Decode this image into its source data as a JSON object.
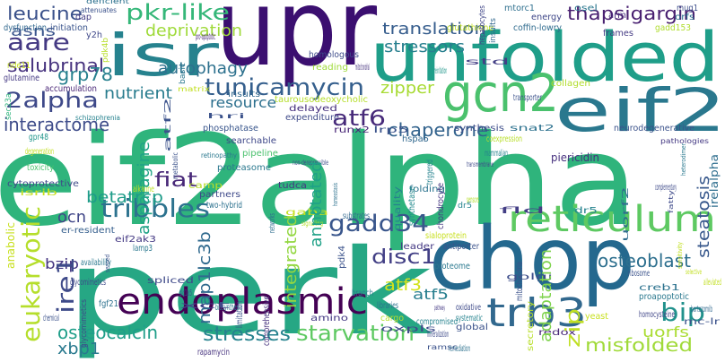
{
  "words": [
    {
      "text": "eif2alpha",
      "color": "#2fb47c"
    },
    {
      "text": "perk",
      "color": "#26a784"
    },
    {
      "text": "upr",
      "color": "#3b0f70"
    },
    {
      "text": "chop",
      "color": "#24688e"
    },
    {
      "text": "unfolded",
      "color": "#1f9e89"
    },
    {
      "text": "eif2",
      "color": "#2a788e"
    },
    {
      "text": "isr",
      "color": "#26828e"
    },
    {
      "text": "gcn2",
      "color": "#4ac16d"
    },
    {
      "text": "endoplasmic",
      "color": "#440154"
    },
    {
      "text": "reticulum",
      "color": "#5ec962"
    },
    {
      "text": "trb3",
      "color": "#31688e"
    },
    {
      "text": "tribbles",
      "color": "#2c728e"
    },
    {
      "text": "tunicamycin",
      "color": "#355f8d"
    },
    {
      "text": "pkr-like",
      "color": "#35b779"
    },
    {
      "text": "aare",
      "color": "#443983"
    },
    {
      "text": "gadd34",
      "color": "#39568c"
    },
    {
      "text": "2alpha",
      "color": "#3e4989"
    },
    {
      "text": "atf6",
      "color": "#472a7a"
    },
    {
      "text": "eukaryotic",
      "color": "#b5de2b"
    },
    {
      "text": "bip",
      "color": "#21918c"
    },
    {
      "text": "ire1",
      "color": "#3e4a89"
    },
    {
      "text": "fiat",
      "color": "#482878"
    },
    {
      "text": "starvation",
      "color": "#5ec962"
    },
    {
      "text": "stresses",
      "color": "#26828e"
    },
    {
      "text": "osteocalcin",
      "color": "#1f9e89"
    },
    {
      "text": "misfolded",
      "color": "#a0da39"
    },
    {
      "text": "thapsigargin",
      "color": "#481f70"
    },
    {
      "text": "leucine",
      "color": "#3b528b"
    },
    {
      "text": "salubrinal",
      "color": "#46327e"
    },
    {
      "text": "grp78",
      "color": "#27808e"
    },
    {
      "text": "interactome",
      "color": "#3e4c8a"
    },
    {
      "text": "chaperone",
      "color": "#33638d"
    },
    {
      "text": "deprivation",
      "color": "#9fda3a"
    },
    {
      "text": "autophagy",
      "color": "#2d718e"
    },
    {
      "text": "nutrient",
      "color": "#287c8e"
    },
    {
      "text": "zipper",
      "color": "#a8db34"
    },
    {
      "text": "translation",
      "color": "#365d8d"
    },
    {
      "text": "stressors",
      "color": "#277f8e"
    },
    {
      "text": "asns",
      "color": "#3a548c"
    },
    {
      "text": "resource",
      "color": "#2d708e"
    },
    {
      "text": "annotated",
      "color": "#1fa187"
    },
    {
      "text": "integrated",
      "color": "#93d741"
    },
    {
      "text": "betatrcp",
      "color": "#1e9c89"
    },
    {
      "text": "asparagine",
      "color": "#20a386"
    },
    {
      "text": "ocn",
      "color": "#404688"
    },
    {
      "text": "bzip",
      "color": "#453581"
    },
    {
      "text": "map1lc3b",
      "color": "#306a8e"
    },
    {
      "text": "disc1",
      "color": "#423f85"
    },
    {
      "text": "atf5",
      "color": "#277e8e"
    },
    {
      "text": "atf3",
      "color": "#d2e21b"
    },
    {
      "text": "osteoblast",
      "color": "#2d6f8e"
    },
    {
      "text": "steatosis",
      "color": "#38588c"
    },
    {
      "text": "adaptation",
      "color": "#7fd34e"
    },
    {
      "text": "zip",
      "color": "#c0df25"
    },
    {
      "text": "uorfs",
      "color": "#aadc32"
    },
    {
      "text": "xbp1",
      "color": "#29798e"
    },
    {
      "text": "cytoprotective",
      "color": "#3e4a89"
    },
    {
      "text": "anabolic",
      "color": "#c8e020"
    },
    {
      "text": "er-resident",
      "color": "#355f8d"
    },
    {
      "text": "proteasome",
      "color": "#2a788e"
    },
    {
      "text": "phosphatase",
      "color": "#39568c"
    },
    {
      "text": "searchable",
      "color": "#3f4889"
    },
    {
      "text": "pipeline",
      "color": "#4ac16d"
    },
    {
      "text": "tudca",
      "color": "#453882"
    },
    {
      "text": "folding",
      "color": "#2c738e"
    },
    {
      "text": "piericidin",
      "color": "#46307e"
    },
    {
      "text": "irelalpha",
      "color": "#2e6e8e"
    },
    {
      "text": "neurodegenerative",
      "color": "#3b528b"
    },
    {
      "text": "hspa5",
      "color": "#31688e"
    },
    {
      "text": "taurousodeoxycholic",
      "color": "#b5de2b"
    },
    {
      "text": "homologous",
      "color": "#3e4c8a"
    },
    {
      "text": "reading",
      "color": "#9fda3a"
    },
    {
      "text": "frames",
      "color": "#443a83"
    },
    {
      "text": "collagen",
      "color": "#b2dd2d"
    },
    {
      "text": "glutathione",
      "color": "#c2df23"
    },
    {
      "text": "coffin-lowry",
      "color": "#2f6b8e"
    },
    {
      "text": "gadd153",
      "color": "#b0dd2f"
    },
    {
      "text": "energy",
      "color": "#3f4788"
    },
    {
      "text": "mtorc1",
      "color": "#2e6f8e"
    },
    {
      "text": "osel",
      "color": "#2a778e"
    },
    {
      "text": "arm",
      "color": "#472d7b"
    },
    {
      "text": "orfs",
      "color": "#2c718e"
    },
    {
      "text": "mug1",
      "color": "#3d4e8a"
    },
    {
      "text": "dap",
      "color": "#433d84"
    },
    {
      "text": "dysfunction",
      "color": "#31688e"
    },
    {
      "text": "initiation",
      "color": "#3a548c"
    },
    {
      "text": "y2h",
      "color": "#3f4889"
    },
    {
      "text": "pdk4b",
      "color": "#b8de29"
    },
    {
      "text": "nde11",
      "color": "#c5e021"
    },
    {
      "text": "glutamine",
      "color": "#443983"
    },
    {
      "text": "accumulation",
      "color": "#482576"
    },
    {
      "text": "sec23a",
      "color": "#2fb47c"
    },
    {
      "text": "schizophrenia",
      "color": "#26828e"
    },
    {
      "text": "pro-apoptotic",
      "color": "#482475"
    },
    {
      "text": "atf2",
      "color": "#3b528b"
    },
    {
      "text": "basic",
      "color": "#2a788e"
    },
    {
      "text": "hepatocytes",
      "color": "#404688"
    },
    {
      "text": "insults",
      "color": "#31688e"
    },
    {
      "text": "delayed",
      "color": "#46307e"
    },
    {
      "text": "expenditure",
      "color": "#3e4a89"
    },
    {
      "text": "mitochondrial",
      "color": "#46327e"
    },
    {
      "text": "std",
      "color": "#433e85"
    },
    {
      "text": "reinitiation",
      "color": "#1f968b"
    },
    {
      "text": "hri",
      "color": "#3b528b"
    },
    {
      "text": "degeneration",
      "color": "#c2df23"
    },
    {
      "text": "toxicity",
      "color": "#4ac16d"
    },
    {
      "text": "gpr48",
      "color": "#1f958b"
    },
    {
      "text": "isrib",
      "color": "#c8e020"
    },
    {
      "text": "metabolic",
      "color": "#3b528b"
    },
    {
      "text": "alkaline",
      "color": "#bddf26"
    },
    {
      "text": "retinopathy",
      "color": "#2a788e"
    },
    {
      "text": "camp",
      "color": "#b8de29"
    },
    {
      "text": "partners",
      "color": "#3e4989"
    },
    {
      "text": "two-hybrid",
      "color": "#2c718e"
    },
    {
      "text": "networks",
      "color": "#2e6d8e"
    },
    {
      "text": "gaba",
      "color": "#c5e021"
    },
    {
      "text": "substrates",
      "color": "#31688e"
    },
    {
      "text": "quality",
      "color": "#26828e"
    },
    {
      "text": "synthetase",
      "color": "#238a8d"
    },
    {
      "text": "synthesis",
      "color": "#3d4d8a"
    },
    {
      "text": "snat2",
      "color": "#2c718e"
    },
    {
      "text": "coexpression",
      "color": "#b8de29"
    },
    {
      "text": "transporter",
      "color": "#3b528b"
    },
    {
      "text": "triggered",
      "color": "#26828e"
    },
    {
      "text": "sensors",
      "color": "#b5de2b"
    },
    {
      "text": "dr5",
      "color": "#25838e"
    },
    {
      "text": "fld",
      "color": "#433e85"
    },
    {
      "text": "uorf2",
      "color": "#2f6c8e"
    },
    {
      "text": "chondrocyte",
      "color": "#453781"
    },
    {
      "text": "complementary",
      "color": "#3e4a89"
    },
    {
      "text": "sialoprotein",
      "color": "#c8e020"
    },
    {
      "text": "leader",
      "color": "#443983"
    },
    {
      "text": "antiporter",
      "color": "#3b528b"
    },
    {
      "text": "proteome",
      "color": "#2a788e"
    },
    {
      "text": "alleviated",
      "color": "#c2df23"
    },
    {
      "text": "ribosome",
      "color": "#3b528b"
    },
    {
      "text": "golgi",
      "color": "#3d4d8a"
    },
    {
      "text": "creb1",
      "color": "#2c728e"
    },
    {
      "text": "proapoptotic",
      "color": "#2a788e"
    },
    {
      "text": "bortezomib",
      "color": "#31688e"
    },
    {
      "text": "homocysteine",
      "color": "#404688"
    },
    {
      "text": "mc-lr",
      "color": "#3b528b"
    },
    {
      "text": "secretory",
      "color": "#b8de29"
    },
    {
      "text": "oxidative",
      "color": "#3e4a89"
    },
    {
      "text": "mitochondria",
      "color": "#3b528b"
    },
    {
      "text": "systematic",
      "color": "#25838e"
    },
    {
      "text": "global",
      "color": "#3b528b"
    },
    {
      "text": "branch",
      "color": "#2a788e"
    },
    {
      "text": "libraries",
      "color": "#2c718e"
    },
    {
      "text": "cargo",
      "color": "#b5de2b"
    },
    {
      "text": "oxpls",
      "color": "#3e4a89"
    },
    {
      "text": "amino",
      "color": "#443983"
    },
    {
      "text": "comprehensive",
      "color": "#46327e"
    },
    {
      "text": "limitation",
      "color": "#3b528b"
    },
    {
      "text": "biosynthesis",
      "color": "#2a788e"
    },
    {
      "text": "slc1a5",
      "color": "#3b528b"
    },
    {
      "text": "spliced",
      "color": "#3e4989"
    },
    {
      "text": "xct",
      "color": "#404688"
    },
    {
      "text": "compromised",
      "color": "#26828e"
    },
    {
      "text": "mineralization",
      "color": "#3e4a89"
    },
    {
      "text": "remediation",
      "color": "#2c718e"
    },
    {
      "text": "redox",
      "color": "#482878"
    },
    {
      "text": "yeast",
      "color": "#c8e020"
    },
    {
      "text": "rapamycin",
      "color": "#46327e"
    },
    {
      "text": "lamp3",
      "color": "#2a788e"
    },
    {
      "text": "eif2ak3",
      "color": "#443983"
    },
    {
      "text": "pdk4",
      "color": "#3b528b"
    },
    {
      "text": "availability",
      "color": "#2a788e"
    },
    {
      "text": "fgf21",
      "color": "#2c718e"
    },
    {
      "text": "chemical",
      "color": "#3b528b"
    },
    {
      "text": "glycomimetics",
      "color": "#3e4989"
    },
    {
      "text": "runx2",
      "color": "#482576"
    },
    {
      "text": "lrp5",
      "color": "#3b528b"
    },
    {
      "text": "mammalian",
      "color": "#26828e"
    },
    {
      "text": "deficient",
      "color": "#2c718e"
    },
    {
      "text": "attenuates",
      "color": "#3b528b"
    },
    {
      "text": "matrix",
      "color": "#c2df23"
    },
    {
      "text": "transmembrane",
      "color": "#3e4a89"
    },
    {
      "text": "pathologies",
      "color": "#443983"
    },
    {
      "text": "heterodimer",
      "color": "#2a788e"
    },
    {
      "text": "signaling",
      "color": "#b5de2b"
    },
    {
      "text": "non-derepressible",
      "color": "#3e4a89"
    },
    {
      "text": "sensitivity",
      "color": "#c2df23"
    },
    {
      "text": "sensed",
      "color": "#3b528b"
    },
    {
      "text": "homeostasis",
      "color": "#2c718e"
    },
    {
      "text": "selective",
      "color": "#c2df23"
    },
    {
      "text": "ramsc",
      "color": "#3b528b"
    },
    {
      "text": "pathway",
      "color": "#443983"
    },
    {
      "text": "fatty",
      "color": "#3e4989"
    },
    {
      "text": "machinery",
      "color": "#3b528b"
    },
    {
      "text": "ion",
      "color": "#2a788e"
    },
    {
      "text": "alanine",
      "color": "#3e4a89"
    }
  ]
}
